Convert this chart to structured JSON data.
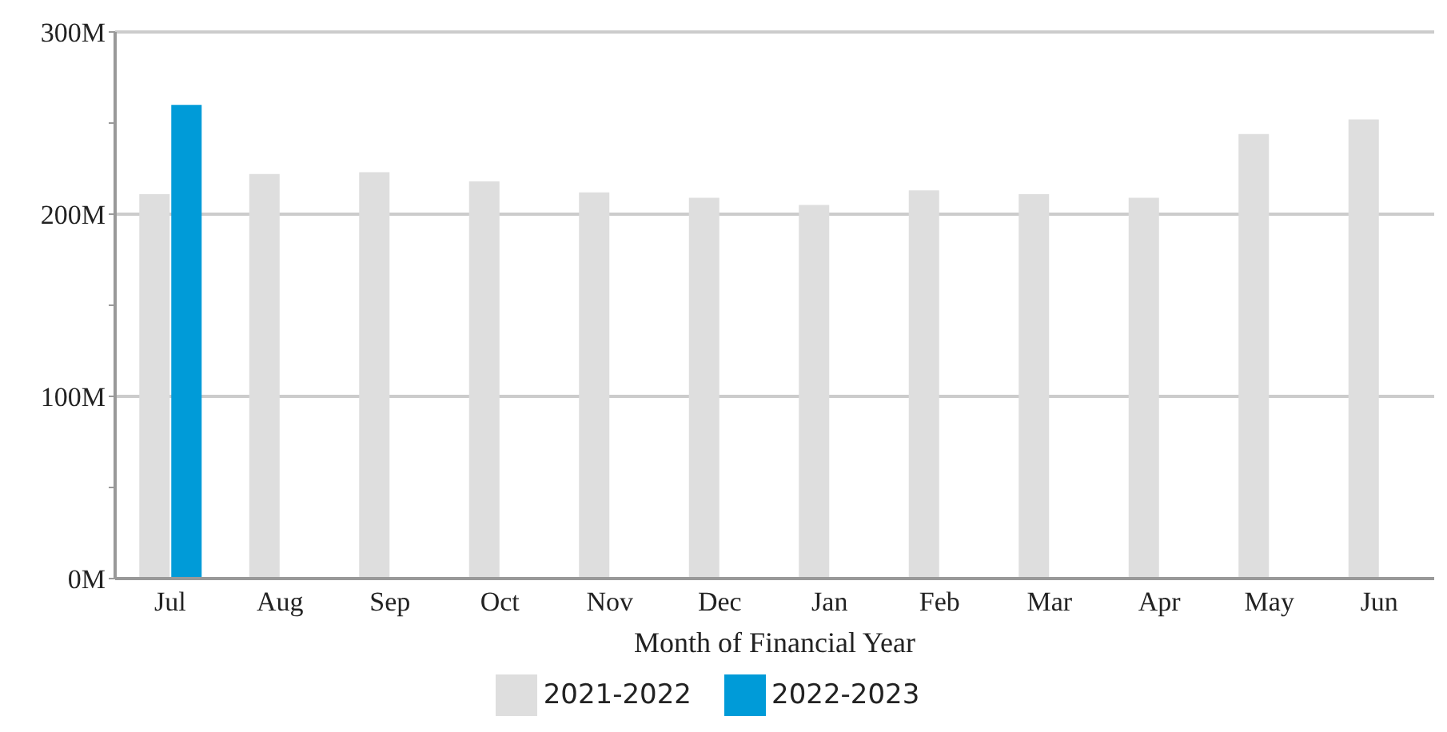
{
  "chart_data": {
    "type": "bar",
    "xlabel": "Month of Financial Year",
    "categories": [
      "Jul",
      "Aug",
      "Sep",
      "Oct",
      "Nov",
      "Dec",
      "Jan",
      "Feb",
      "Mar",
      "Apr",
      "May",
      "Jun"
    ],
    "series": [
      {
        "name": "2021-2022",
        "color": "#dedede",
        "values": [
          211000000,
          222000000,
          223000000,
          218000000,
          212000000,
          209000000,
          205000000,
          213000000,
          211000000,
          209000000,
          244000000,
          252000000
        ]
      },
      {
        "name": "2022-2023",
        "color": "#009bd8",
        "values": [
          260000000,
          null,
          null,
          null,
          null,
          null,
          null,
          null,
          null,
          null,
          null,
          null
        ]
      }
    ],
    "ylim": [
      0,
      300000000
    ],
    "yticks": [
      {
        "value": 0,
        "label": "0M"
      },
      {
        "value": 50000000,
        "label": null
      },
      {
        "value": 100000000,
        "label": "100M"
      },
      {
        "value": 150000000,
        "label": null
      },
      {
        "value": 200000000,
        "label": "200M"
      },
      {
        "value": 250000000,
        "label": null
      },
      {
        "value": 300000000,
        "label": "300M"
      }
    ],
    "grid": "y",
    "legend": "bottom"
  }
}
